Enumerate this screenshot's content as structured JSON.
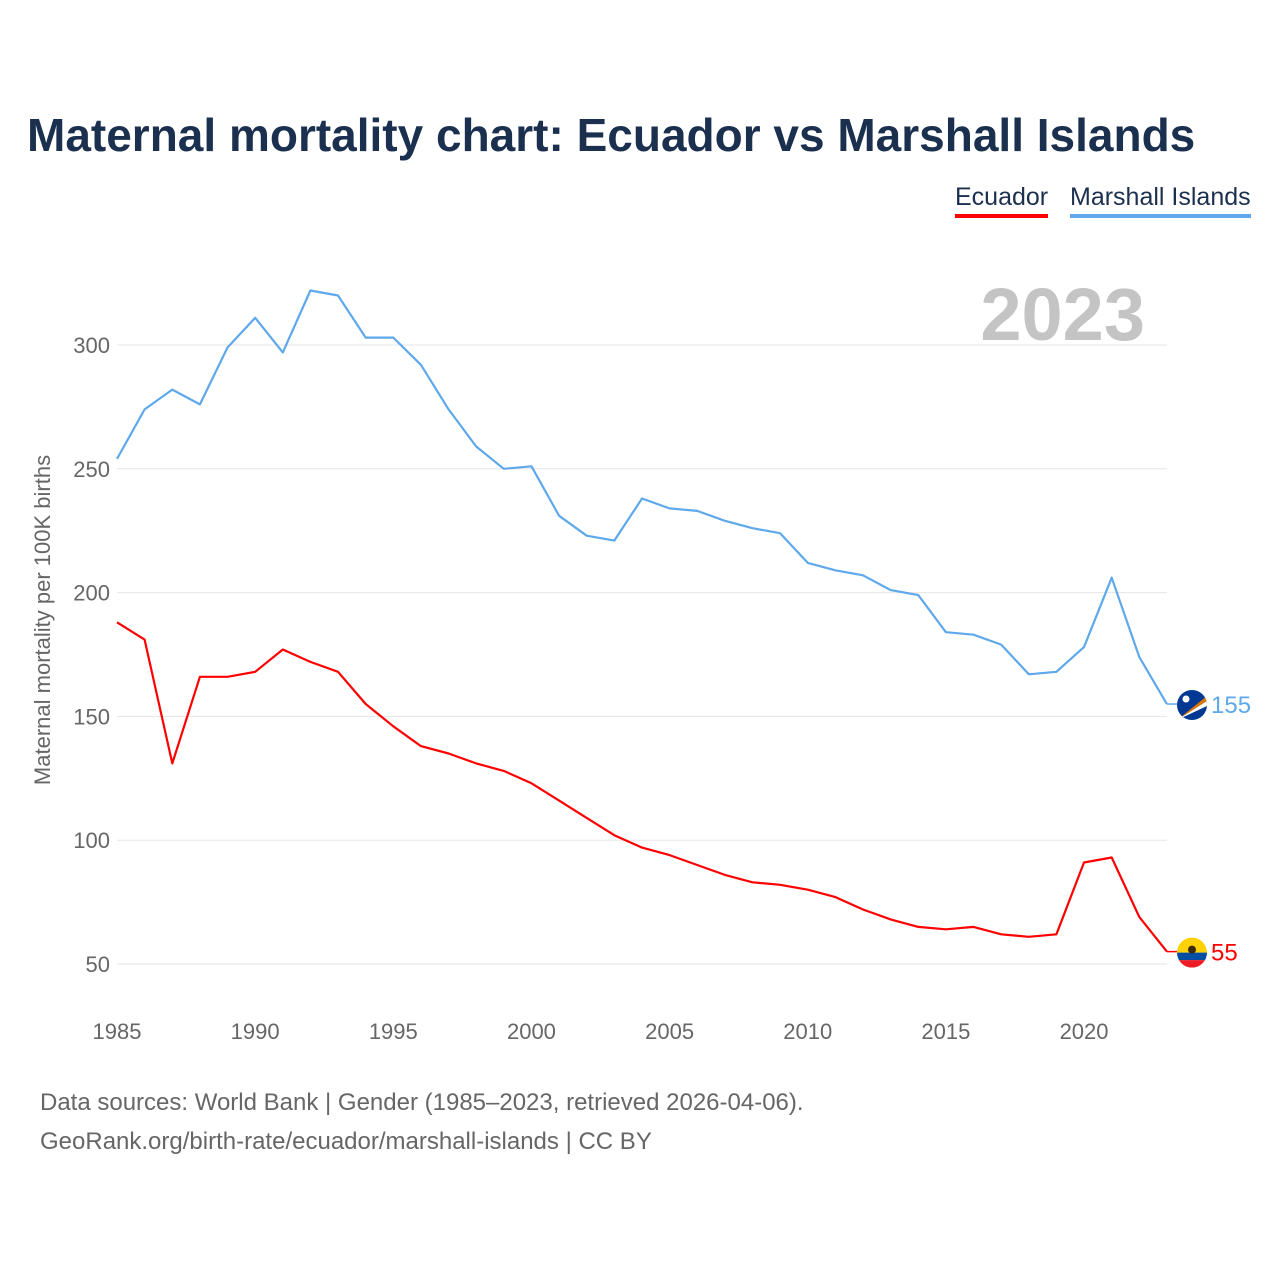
{
  "chart_data": {
    "type": "line",
    "title": "Maternal mortality chart: Ecuador vs Marshall Islands",
    "xlabel": "",
    "ylabel": "Maternal mortality per 100K births",
    "year_label": "2023",
    "xlim": [
      1985,
      2023
    ],
    "ylim": [
      30,
      330
    ],
    "grid": true,
    "legend_position": "top-right",
    "x_ticks": [
      1985,
      1990,
      1995,
      2000,
      2005,
      2010,
      2015,
      2020
    ],
    "y_ticks": [
      50,
      100,
      150,
      200,
      250,
      300
    ],
    "x": [
      1985,
      1986,
      1987,
      1988,
      1989,
      1990,
      1991,
      1992,
      1993,
      1994,
      1995,
      1996,
      1997,
      1998,
      1999,
      2000,
      2001,
      2002,
      2003,
      2004,
      2005,
      2006,
      2007,
      2008,
      2009,
      2010,
      2011,
      2012,
      2013,
      2014,
      2015,
      2016,
      2017,
      2018,
      2019,
      2020,
      2021,
      2022,
      2023
    ],
    "series": [
      {
        "name": "Ecuador",
        "color": "#ff0000",
        "end_label": "55",
        "values": [
          188,
          181,
          131,
          166,
          166,
          168,
          177,
          172,
          168,
          155,
          146,
          138,
          135,
          131,
          128,
          123,
          116,
          109,
          102,
          97,
          94,
          90,
          86,
          83,
          82,
          80,
          77,
          72,
          68,
          65,
          64,
          65,
          62,
          61,
          62,
          91,
          93,
          69,
          55
        ]
      },
      {
        "name": "Marshall Islands",
        "color": "#5ea8eb",
        "end_label": "155",
        "values": [
          254,
          274,
          282,
          276,
          299,
          311,
          297,
          322,
          320,
          303,
          303,
          292,
          274,
          259,
          250,
          251,
          231,
          223,
          221,
          238,
          234,
          233,
          229,
          226,
          224,
          212,
          209,
          207,
          201,
          199,
          184,
          183,
          179,
          167,
          168,
          178,
          206,
          174,
          155
        ]
      }
    ]
  },
  "footer": {
    "line1": "Data sources: World Bank | Gender (1985–2023, retrieved 2026-04-06).",
    "line2": "GeoRank.org/birth-rate/ecuador/marshall-islands | CC BY"
  }
}
